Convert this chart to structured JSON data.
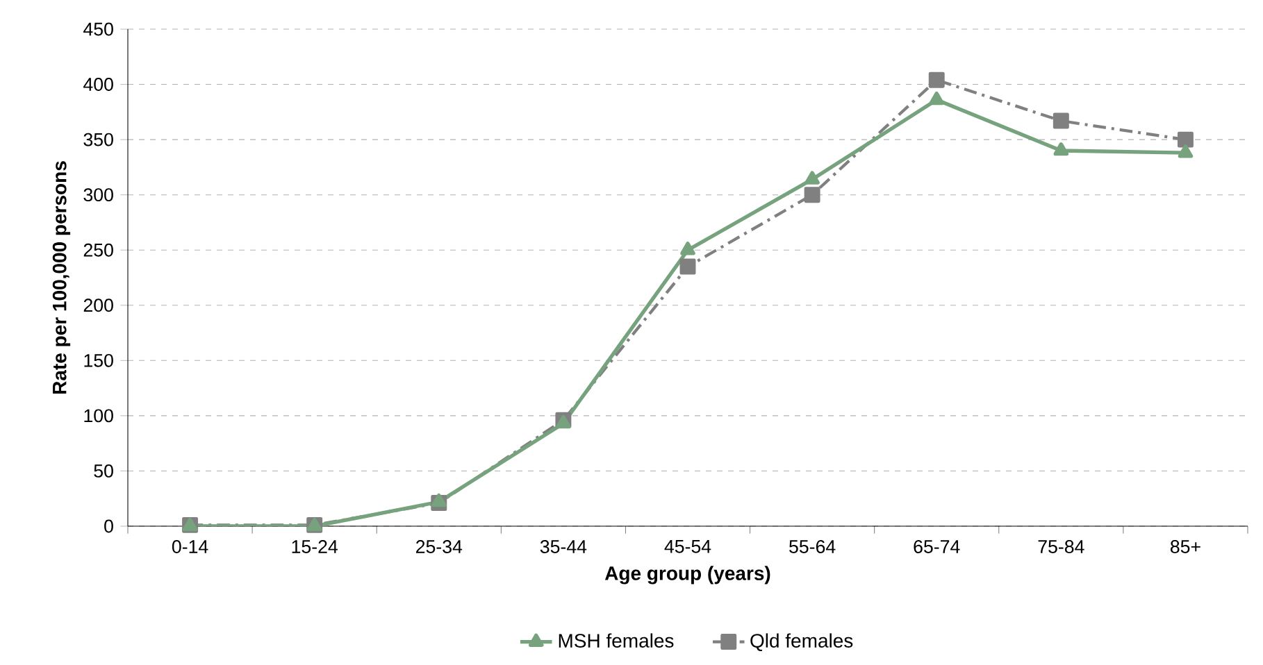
{
  "chart_data": {
    "type": "line",
    "xlabel": "Age group (years)",
    "ylabel": "Rate per 100,000  persons",
    "categories": [
      "0-14",
      "15-24",
      "25-34",
      "35-44",
      "45-54",
      "55-64",
      "65-74",
      "75-84",
      "85+"
    ],
    "series": [
      {
        "name": "MSH females",
        "color": "#76a37d",
        "marker": "triangle",
        "line_style": "solid",
        "values": [
          0,
          0,
          22,
          93,
          250,
          314,
          386,
          340,
          338
        ]
      },
      {
        "name": "Qld females",
        "color": "#808080",
        "marker": "square",
        "line_style": "dashed",
        "values": [
          1,
          1,
          21,
          96,
          235,
          300,
          404,
          367,
          350
        ]
      }
    ],
    "ylim": [
      0,
      450
    ],
    "yticks": [
      0,
      50,
      100,
      150,
      200,
      250,
      300,
      350,
      400,
      450
    ],
    "grid": "y",
    "legend": "bottom"
  }
}
